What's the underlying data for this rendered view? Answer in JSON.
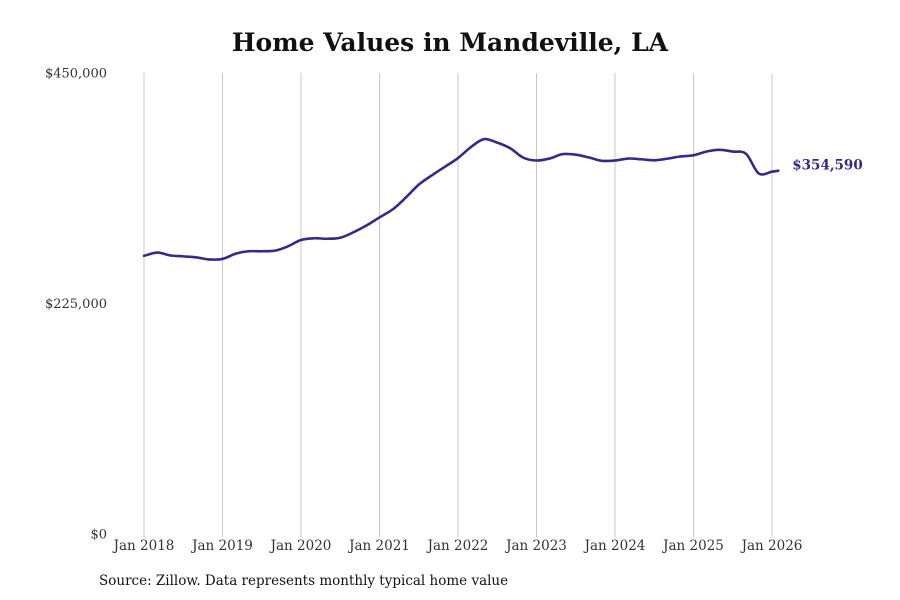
{
  "chart_data": {
    "type": "line",
    "title": "Home Values in Mandeville, LA",
    "source": "Source: Zillow. Data represents monthly typical home value",
    "xlabel": "",
    "ylabel": "",
    "ylim": [
      0,
      450000
    ],
    "y_ticks": [
      0,
      225000,
      450000
    ],
    "y_tick_labels": [
      "$0",
      "$225,000",
      "$450,000"
    ],
    "x_ticks": [
      2018,
      2019,
      2020,
      2021,
      2022,
      2023,
      2024,
      2025,
      2026
    ],
    "x_tick_labels": [
      "Jan 2018",
      "Jan 2019",
      "Jan 2020",
      "Jan 2021",
      "Jan 2022",
      "Jan 2023",
      "Jan 2024",
      "Jan 2025",
      "Jan 2026"
    ],
    "grid": "vertical",
    "line_color": "#352a87",
    "end_label": "$354,590",
    "series": [
      {
        "name": "Typical home value",
        "x": [
          2018.0,
          2018.17,
          2018.33,
          2018.5,
          2018.67,
          2018.83,
          2019.0,
          2019.17,
          2019.33,
          2019.5,
          2019.67,
          2019.83,
          2020.0,
          2020.17,
          2020.33,
          2020.5,
          2020.67,
          2020.83,
          2021.0,
          2021.17,
          2021.33,
          2021.5,
          2021.67,
          2021.83,
          2022.0,
          2022.17,
          2022.33,
          2022.5,
          2022.67,
          2022.83,
          2023.0,
          2023.17,
          2023.33,
          2023.5,
          2023.67,
          2023.83,
          2024.0,
          2024.17,
          2024.33,
          2024.5,
          2024.67,
          2024.83,
          2025.0,
          2025.17,
          2025.33,
          2025.5,
          2025.67,
          2025.83,
          2026.0,
          2026.08
        ],
        "values": [
          271500,
          274700,
          272000,
          271000,
          270000,
          268000,
          268500,
          273700,
          276000,
          276000,
          276600,
          280700,
          287000,
          288700,
          288200,
          289200,
          294600,
          301000,
          309000,
          317000,
          328000,
          341000,
          350300,
          358300,
          367000,
          378000,
          385400,
          382000,
          376300,
          367400,
          364600,
          366600,
          370800,
          370300,
          367500,
          364300,
          364600,
          366500,
          365800,
          364800,
          366400,
          368500,
          369700,
          373400,
          375000,
          373300,
          371100,
          352000,
          353700,
          354590
        ]
      }
    ]
  }
}
